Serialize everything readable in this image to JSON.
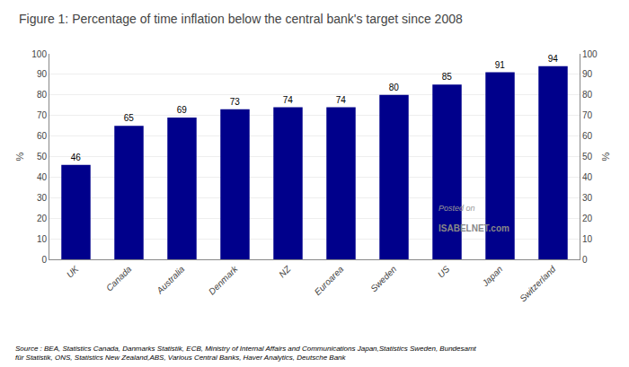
{
  "chart_data": {
    "type": "bar",
    "title": "Figure 1: Percentage of time inflation below the central bank's target since 2008",
    "categories": [
      "UK",
      "Canada",
      "Australia",
      "Denmark",
      "NZ",
      "Euroarea",
      "Sweden",
      "US",
      "Japan",
      "Switzerland"
    ],
    "values": [
      46,
      65,
      69,
      73,
      74,
      74,
      80,
      85,
      91,
      94
    ],
    "color": "#00008B",
    "ylabel": "%",
    "y2label": "%",
    "ylim": [
      0,
      100
    ],
    "yticks": [
      0,
      10,
      20,
      30,
      40,
      50,
      60,
      70,
      80,
      90,
      100
    ],
    "y2lim": [
      0,
      100
    ],
    "y2ticks": [
      0,
      10,
      20,
      30,
      40,
      50,
      60,
      70,
      80,
      90,
      100
    ],
    "grid": true,
    "data_labels": true,
    "annotations": [
      "Posted on",
      "ISABELNET.com",
      "Source : BEA, Statistics Canada, Danmarks Statistik, ECB, Ministry of Internal Affairs and Communications Japan,Statistics Sweden, Bundesamt\nfür Statistik, ONS, Statistics New Zealand,ABS, Various Central Banks, Haver Analytics, Deutsche Bank"
    ]
  }
}
